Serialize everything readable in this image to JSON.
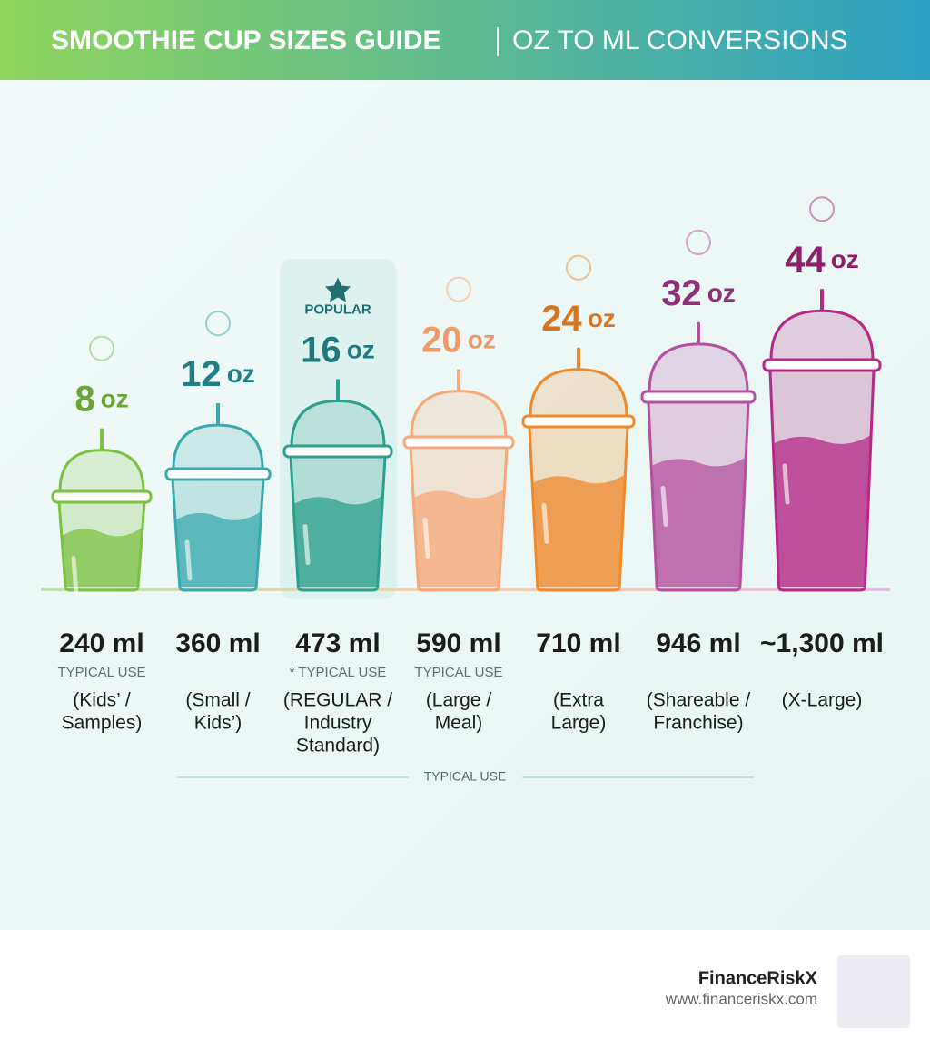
{
  "header": {
    "title": "SMOOTHIE CUP SIZES GUIDE",
    "subtitle": "OZ TO ML CONVERSIONS"
  },
  "cups": [
    {
      "size": "8",
      "unit": "oz",
      "ml": "240 ml",
      "note": "TYPICAL USE",
      "use": [
        "(Kids’ /",
        "Samples)"
      ],
      "color": "#7cc242",
      "text_color": "#6aa534"
    },
    {
      "size": "12",
      "unit": "oz",
      "ml": "360 ml",
      "use": [
        "(Small /",
        "Kids’)"
      ],
      "color": "#3aa9ae",
      "text_color": "#1f7f86"
    },
    {
      "size": "16",
      "unit": "oz",
      "ml": "473 ml",
      "badge": "POPULAR",
      "note": "* TYPICAL USE",
      "use": [
        "(REGULAR /",
        "Industry",
        "Standard)"
      ],
      "color": "#2e9f8e",
      "text_color": "#1f7a80"
    },
    {
      "size": "20",
      "unit": "oz",
      "ml": "590 ml",
      "note": "TYPICAL USE",
      "use": [
        "(Large /",
        "Meal)"
      ],
      "color": "#f5a878",
      "text_color": "#ee9a68"
    },
    {
      "size": "24",
      "unit": "oz",
      "ml": "710 ml",
      "use": [
        "(Extra",
        "Large)"
      ],
      "color": "#ee8a2c",
      "text_color": "#d9731c"
    },
    {
      "size": "32",
      "unit": "oz",
      "ml": "946 ml",
      "use": [
        "(Shareable /",
        "Franchise)"
      ],
      "color": "#b5509f",
      "text_color": "#8e2f78"
    },
    {
      "size": "44",
      "unit": "oz",
      "ml": "~1,300 ml",
      "use": [
        "(X-Large)"
      ],
      "color": "#b42a86",
      "text_color": "#8e1f6c"
    }
  ],
  "footer_label": "TYPICAL USE",
  "footer": {
    "brand": "FinanceRiskX",
    "url": "www.financeriskx.com"
  }
}
